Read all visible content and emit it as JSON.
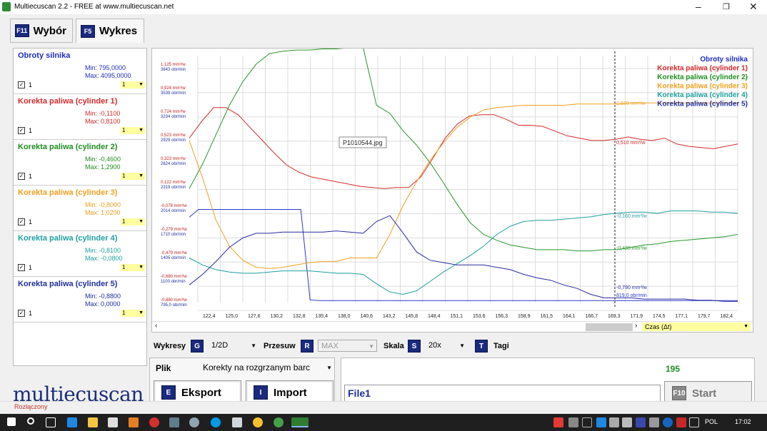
{
  "window": {
    "title": "Multiecuscan 2.2 - FREE at www.multiecuscan.net"
  },
  "tabs": [
    {
      "key": "F11",
      "label": "Wybór"
    },
    {
      "key": "F5",
      "label": "Wykres"
    }
  ],
  "sensors": [
    {
      "name": "Obroty silnika",
      "min": "Min: 795,0000",
      "max": "Max: 4095,0000",
      "color": "#1f2fbf",
      "scale": "1"
    },
    {
      "name": "Korekta paliwa (cylinder 1)",
      "min": "Min: -0,1100",
      "max": "Max: 0,8100",
      "color": "#d42b2b",
      "scale": "1"
    },
    {
      "name": "Korekta paliwa (cylinder 2)",
      "min": "Min: -0,4600",
      "max": "Max: 1,2900",
      "color": "#1f8f1f",
      "scale": "1"
    },
    {
      "name": "Korekta paliwa (cylinder 3)",
      "min": "Min: -0,8000",
      "max": "Max: 1,0200",
      "color": "#f0a020",
      "scale": "1"
    },
    {
      "name": "Korekta paliwa (cylinder 4)",
      "min": "Min: -0,8100",
      "max": "Max: -0,0800",
      "color": "#1f9f9f",
      "scale": "1"
    },
    {
      "name": "Korekta paliwa (cylinder 5)",
      "min": "Min: -0,8800",
      "max": "Max: 0,0000",
      "color": "#1f2f9f",
      "scale": "1"
    }
  ],
  "sensor_check_label": "1",
  "chart_data": {
    "type": "line",
    "xlabel": "Czas (Δt)",
    "x_ticks": [
      "122,4",
      "125,0",
      "127,6",
      "130,2",
      "132,8",
      "135,4",
      "138,0",
      "140,6",
      "143,2",
      "145,8",
      "148,4",
      "151,1",
      "153,6",
      "156,3",
      "158,9",
      "161,5",
      "164,1",
      "166,7",
      "169,3",
      "171,9",
      "174,5",
      "177,1",
      "179,7",
      "182,4"
    ],
    "y_ticks": [
      {
        "upper": "1,125 mm³/w",
        "lower": "3843 obr/min"
      },
      {
        "upper": "0,924 mm³/w",
        "lower": "3539 obr/min"
      },
      {
        "upper": "0,724 mm³/w",
        "lower": "3234 obr/min"
      },
      {
        "upper": "0,523 mm³/w",
        "lower": "2929 obr/min"
      },
      {
        "upper": "0,323 mm³/w",
        "lower": "2624 obr/min"
      },
      {
        "upper": "0,122 mm³/w",
        "lower": "2319 obr/min"
      },
      {
        "upper": "-0,078 mm³/w",
        "lower": "2014 obr/min"
      },
      {
        "upper": "-0,279 mm³/w",
        "lower": "1710 obr/min"
      },
      {
        "upper": "-0,479 mm³/w",
        "lower": "1405 obr/min"
      },
      {
        "upper": "-0,680 mm³/w",
        "lower": "1100 obr/min"
      },
      {
        "upper": "-0,880 mm³/w",
        "lower": "795,0 obr/min"
      }
    ],
    "legend": [
      "Obroty silnika",
      "Korekta paliwa (cylinder 1)",
      "Korekta paliwa (cylinder 2)",
      "Korekta paliwa (cylinder 3)",
      "Korekta paliwa (cylinder 4)",
      "Korekta paliwa (cylinder 5)"
    ],
    "series": [
      {
        "name": "Obroty silnika",
        "color": "#2a3ad0",
        "values": [
          1900,
          2000,
          2000,
          2000,
          2000,
          2000,
          2000,
          2000,
          2000,
          2000,
          2000,
          2000,
          2000,
          830,
          820,
          820,
          820,
          820,
          820,
          820,
          820,
          820,
          820,
          820,
          820,
          820,
          820,
          820,
          820,
          820,
          820,
          820,
          820,
          820,
          820,
          820,
          820,
          820,
          820,
          820,
          820,
          820,
          820,
          820,
          820,
          820,
          820,
          820,
          820,
          820,
          820,
          820,
          820,
          820,
          820,
          820,
          820,
          820,
          820,
          820
        ]
      },
      {
        "name": "Korekta paliwa (cylinder 1)",
        "color": "#d42b2b",
        "values": [
          0.52,
          0.66,
          0.78,
          0.78,
          0.72,
          0.61,
          0.5,
          0.39,
          0.29,
          0.23,
          0.19,
          0.17,
          0.15,
          0.13,
          0.11,
          0.1,
          0.09,
          0.1,
          0.1,
          0.19,
          0.35,
          0.52,
          0.64,
          0.71,
          0.72,
          0.72,
          0.68,
          0.63,
          0.63,
          0.62,
          0.58,
          0.54,
          0.52,
          0.5,
          0.5,
          0.51,
          0.53,
          0.51,
          0.5,
          0.52,
          0.47,
          0.45,
          0.44,
          0.43,
          0.45,
          0.47
        ]
      },
      {
        "name": "Korekta paliwa (cylinder 2)",
        "color": "#28962a",
        "values": [
          0.09,
          0.3,
          0.55,
          0.8,
          1.0,
          1.15,
          1.24,
          1.26,
          1.27,
          1.27,
          1.28,
          1.28,
          1.29,
          1.29,
          0.8,
          0.73,
          0.58,
          0.46,
          0.31,
          0.14,
          -0.04,
          -0.2,
          -0.3,
          -0.35,
          -0.39,
          -0.41,
          -0.43,
          -0.43,
          -0.43,
          -0.44,
          -0.44,
          -0.43,
          -0.43,
          -0.41,
          -0.39,
          -0.38,
          -0.36,
          -0.35,
          -0.34,
          -0.33,
          -0.32,
          -0.3
        ]
      },
      {
        "name": "Korekta paliwa (cylinder 3)",
        "color": "#f0a020",
        "values": [
          0.5,
          0.18,
          -0.18,
          -0.4,
          -0.52,
          -0.58,
          -0.59,
          -0.58,
          -0.56,
          -0.54,
          -0.53,
          -0.53,
          -0.5,
          -0.5,
          -0.5,
          -0.3,
          -0.05,
          0.15,
          0.33,
          0.48,
          0.61,
          0.7,
          0.76,
          0.78,
          0.79,
          0.8,
          0.8,
          0.8,
          0.8,
          0.81,
          0.81,
          0.81,
          0.81,
          0.82,
          0.82,
          0.82,
          0.82,
          0.82,
          0.82,
          0.82,
          0.82,
          0.82
        ]
      },
      {
        "name": "Korekta paliwa (cylinder 4)",
        "color": "#1f9f9f",
        "values": [
          -0.5,
          -0.56,
          -0.6,
          -0.62,
          -0.63,
          -0.63,
          -0.62,
          -0.61,
          -0.61,
          -0.61,
          -0.62,
          -0.63,
          -0.63,
          -0.64,
          -0.72,
          -0.79,
          -0.81,
          -0.78,
          -0.7,
          -0.62,
          -0.55,
          -0.48,
          -0.4,
          -0.3,
          -0.23,
          -0.19,
          -0.18,
          -0.18,
          -0.17,
          -0.16,
          -0.15,
          -0.13,
          -0.12,
          -0.11,
          -0.11,
          -0.12,
          -0.1,
          -0.1,
          -0.1,
          -0.11,
          -0.11,
          -0.12
        ]
      },
      {
        "name": "Korekta paliwa (cylinder 5)",
        "color": "#2a2aa0",
        "values": [
          -0.73,
          -0.64,
          -0.53,
          -0.41,
          -0.33,
          -0.29,
          -0.29,
          -0.28,
          -0.28,
          -0.28,
          -0.28,
          -0.27,
          -0.28,
          -0.29,
          -0.19,
          -0.14,
          -0.29,
          -0.45,
          -0.52,
          -0.54,
          -0.56,
          -0.56,
          -0.56,
          -0.58,
          -0.6,
          -0.64,
          -0.67,
          -0.69,
          -0.73,
          -0.76,
          -0.81,
          -0.84,
          -0.84,
          -0.84,
          -0.85,
          -0.85,
          -0.85,
          -0.85,
          -0.86,
          -0.86,
          -0.87,
          -0.87
        ]
      }
    ],
    "annotations": [
      "0,830 mm³/w",
      "0,510 mm³/w",
      "-0,160 mm³/w",
      "-0,430 mm³/w",
      "-0,790 mm³/w",
      "819,0 obr/min"
    ],
    "tooltip": "P1010544.jpg"
  },
  "controls": {
    "wykresy_label": "Wykresy",
    "wykresy_key": "G",
    "wykresy_value": "1/2D",
    "przesuw_label": "Przesuw",
    "przesuw_key": "R",
    "przesuw_value": "MAX",
    "skala_label": "Skala",
    "skala_key": "S",
    "skala_value": "20x",
    "tagi_key": "T",
    "tagi_label": "Tagi"
  },
  "plik": {
    "label": "Plik",
    "value": "Korekty na rozgrzanym barc",
    "eksport_key": "E",
    "eksport_label": "Eksport",
    "import_key": "I",
    "import_label": "Import"
  },
  "file": {
    "count": "195",
    "name": "File1",
    "start_key": "F10",
    "start_label": "Start"
  },
  "logo": "multiecuscan",
  "status": "Rozłączony",
  "taskbar": {
    "lang": "POL",
    "time": "17:02"
  }
}
